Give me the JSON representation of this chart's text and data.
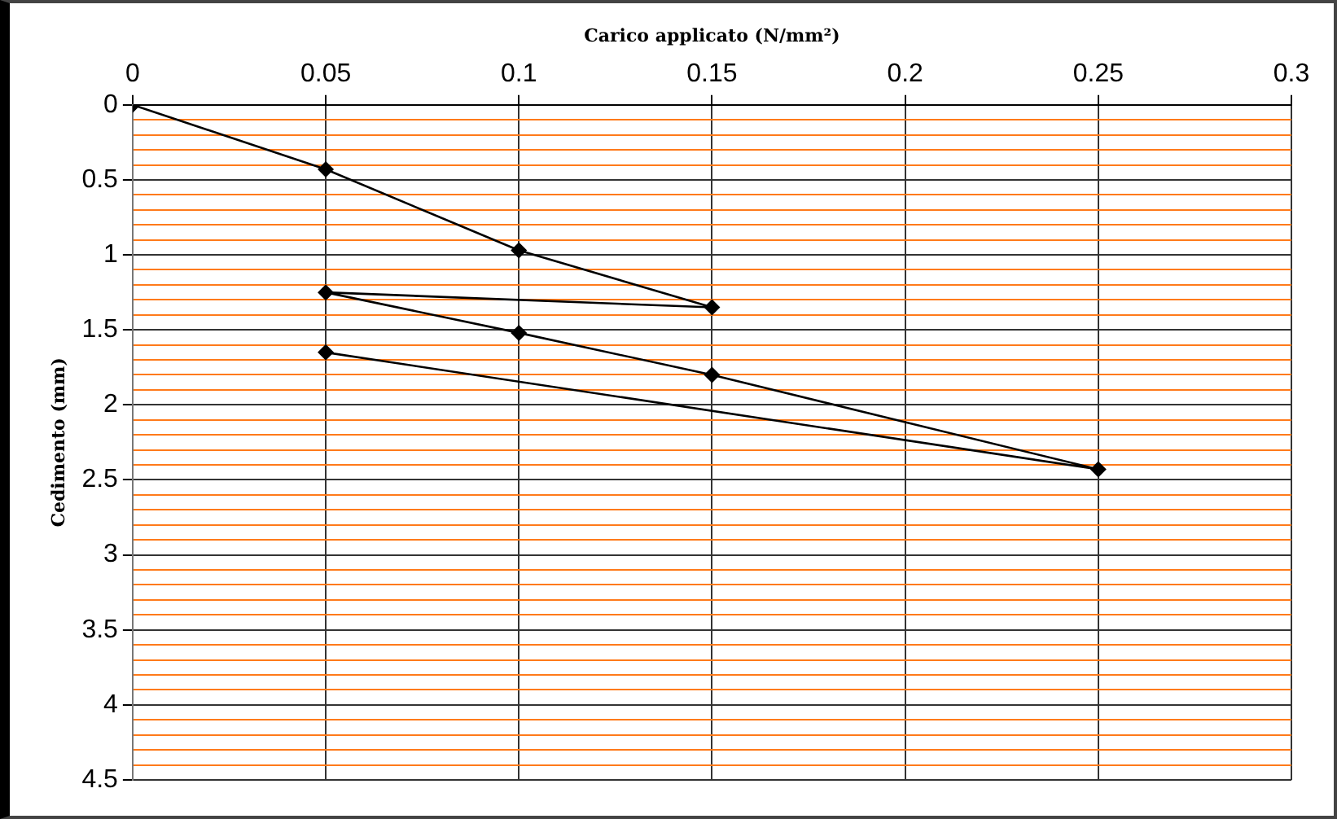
{
  "chart_data": {
    "type": "line",
    "xlabel": "Carico applicato (N/mm²)",
    "ylabel": "Cedimento (mm)",
    "x": [
      0,
      0.05,
      0.1,
      0.15,
      0.05,
      0.1,
      0.15,
      0.25,
      0.05
    ],
    "series": [
      {
        "color": "#000000",
        "values": [
          0,
          0.43,
          0.97,
          1.35,
          1.25,
          1.52,
          1.8,
          2.43,
          1.65
        ]
      }
    ],
    "xlim": [
      0,
      0.3
    ],
    "xticks": [
      0,
      0.05,
      0.1,
      0.15,
      0.2,
      0.25,
      0.3
    ],
    "ylim": [
      4.5,
      0
    ],
    "yticks": [
      0,
      {
        "value": 0.1,
        "label": null
      },
      {
        "value": 0.2,
        "label": null
      },
      {
        "value": 0.3,
        "label": null
      },
      {
        "value": 0.4,
        "label": null
      },
      0.5,
      {
        "value": 0.6,
        "label": null
      },
      {
        "value": 0.7,
        "label": null
      },
      {
        "value": 0.8,
        "label": null
      },
      {
        "value": 0.9,
        "label": null
      },
      1,
      {
        "value": 1.1,
        "label": null
      },
      {
        "value": 1.2,
        "label": null
      },
      {
        "value": 1.3,
        "label": null
      },
      {
        "value": 1.4,
        "label": null
      },
      1.5,
      {
        "value": 1.6,
        "label": null
      },
      {
        "value": 1.7,
        "label": null
      },
      {
        "value": 1.8,
        "label": null
      },
      {
        "value": 1.9,
        "label": null
      },
      2,
      {
        "value": 2.1,
        "label": null
      },
      {
        "value": 2.2,
        "label": null
      },
      {
        "value": 2.3,
        "label": null
      },
      {
        "value": 2.4,
        "label": null
      },
      2.5,
      {
        "value": 2.6,
        "label": null
      },
      {
        "value": 2.7,
        "label": null
      },
      {
        "value": 2.8,
        "label": null
      },
      {
        "value": 2.9,
        "label": null
      },
      3,
      {
        "value": 3.1,
        "label": null
      },
      {
        "value": 3.2,
        "label": null
      },
      {
        "value": 3.3,
        "label": null
      },
      {
        "value": 3.4,
        "label": null
      },
      3.5,
      {
        "value": 3.6,
        "label": null
      },
      {
        "value": 3.7,
        "label": null
      },
      {
        "value": 3.8,
        "label": null
      },
      {
        "value": 3.9,
        "label": null
      },
      4,
      {
        "value": 4.1,
        "label": null
      },
      {
        "value": 4.2,
        "label": null
      },
      {
        "value": 4.3,
        "label": null
      },
      {
        "value": 4.4,
        "label": null
      },
      4.5
    ],
    "grid": true,
    "legend": false,
    "marker": "diamond",
    "line_style": "solid"
  }
}
